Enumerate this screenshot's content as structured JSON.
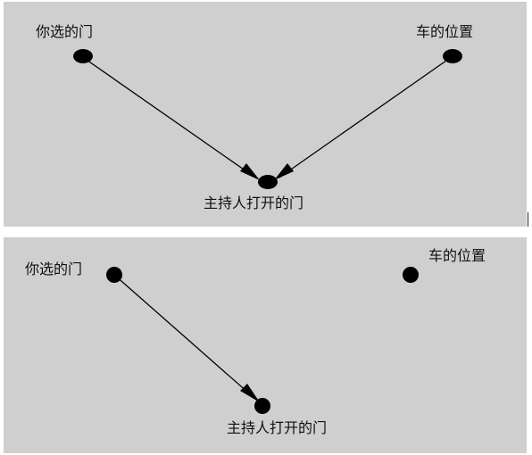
{
  "diagrams": [
    {
      "nodes": {
        "your_door": "你选的门",
        "car_position": "车的位置",
        "host_opened_door": "主持人打开的门"
      },
      "edges": [
        {
          "from": "your_door",
          "to": "host_opened_door"
        },
        {
          "from": "car_position",
          "to": "host_opened_door"
        }
      ]
    },
    {
      "nodes": {
        "your_door": "你选的门",
        "car_position": "车的位置",
        "host_opened_door": "主持人打开的门"
      },
      "edges": [
        {
          "from": "your_door",
          "to": "host_opened_door"
        }
      ]
    }
  ],
  "colors": {
    "panel_background": "#cfcfcf",
    "node_fill": "#000000",
    "edge_stroke": "#000000"
  }
}
